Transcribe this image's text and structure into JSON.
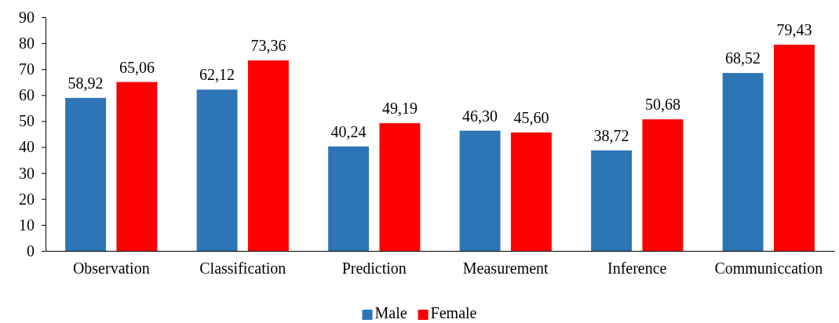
{
  "chart_data": {
    "type": "bar",
    "categories": [
      "Observation",
      "Classification",
      "Prediction",
      "Measurement",
      "Inference",
      "Communiccation"
    ],
    "series": [
      {
        "name": "Male",
        "color": "#2e75b6",
        "values": [
          58.92,
          62.12,
          40.24,
          46.3,
          38.72,
          68.52
        ],
        "value_labels": [
          "58,92",
          "62,12",
          "40,24",
          "46,30",
          "38,72",
          "68,52"
        ]
      },
      {
        "name": "Female",
        "color": "#ff0000",
        "values": [
          65.06,
          73.36,
          49.19,
          45.6,
          50.68,
          79.43
        ],
        "value_labels": [
          "65,06",
          "73,36",
          "49,19",
          "45,60",
          "50,68",
          "79,43"
        ]
      }
    ],
    "ylim": [
      0,
      90
    ],
    "yticks": [
      0,
      10,
      20,
      30,
      40,
      50,
      60,
      70,
      80,
      90
    ],
    "grid": false,
    "legend": "bottom"
  }
}
